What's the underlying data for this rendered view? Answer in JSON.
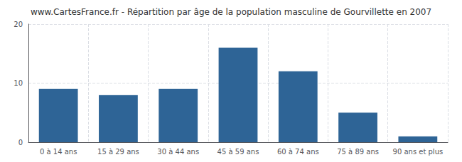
{
  "chart_data": {
    "type": "bar",
    "title": "www.CartesFrance.fr - Répartition par âge de la population masculine de Gourvillette en 2007",
    "categories": [
      "0 à 14 ans",
      "15 à 29 ans",
      "30 à 44 ans",
      "45 à 59 ans",
      "60 à 74 ans",
      "75 à 89 ans",
      "90 ans et plus"
    ],
    "values": [
      9,
      8,
      9,
      16,
      12,
      5,
      1
    ],
    "color": "#2e6496",
    "ylim": [
      0,
      20
    ],
    "yticks": [
      0,
      10,
      20
    ],
    "grid": true
  }
}
